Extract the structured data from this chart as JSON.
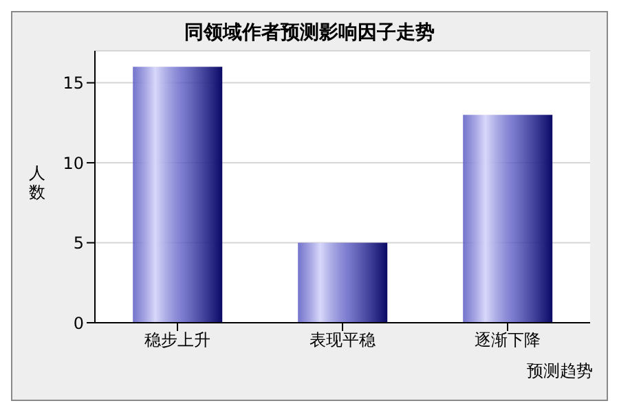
{
  "chart_data": {
    "type": "bar",
    "title": "同领域作者预测影响因子走势",
    "xlabel": "预测趋势",
    "ylabel": "人数",
    "categories": [
      "稳步上升",
      "表现平稳",
      "逐渐下降"
    ],
    "values": [
      16,
      5,
      13
    ],
    "color": "#5c5cc4",
    "ylim": [
      0,
      17
    ],
    "yticks": [
      0,
      5,
      10,
      15
    ],
    "grid": "y"
  }
}
